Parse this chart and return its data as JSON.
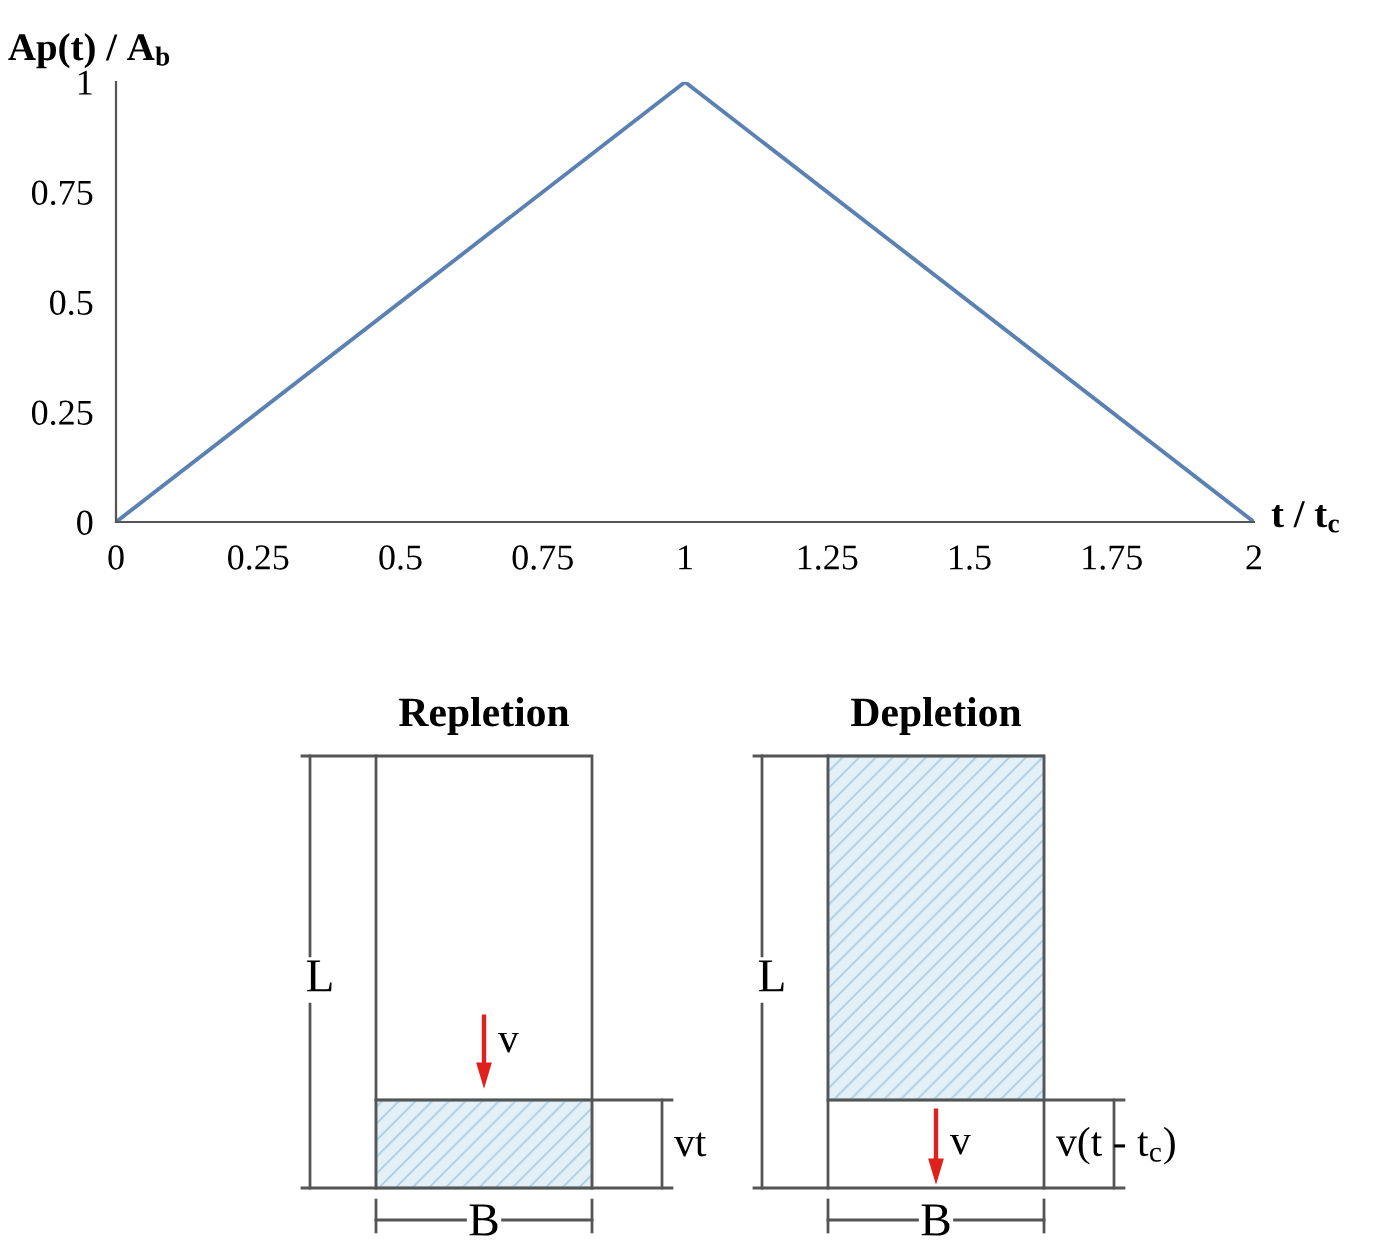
{
  "chart_data": {
    "type": "line",
    "ylabel": "Ap(t) / A$_{b}$",
    "xlabel": "t / t$_{c}$",
    "x": [
      0,
      1,
      2
    ],
    "series": [
      {
        "color": "#5b80b2",
        "values": [
          0,
          1,
          0
        ]
      }
    ],
    "xlim": [
      0,
      2
    ],
    "xticks": [
      0,
      0.25,
      0.5,
      0.75,
      1,
      1.25,
      1.5,
      1.75,
      2
    ],
    "ylim": [
      0,
      1
    ],
    "yticks": [
      0,
      0.25,
      0.5,
      0.75,
      1
    ],
    "marker": "none",
    "line_style": "solid",
    "annotations": [
      "Repletion",
      "Depletion",
      "L",
      "v",
      "vt",
      "B",
      "L",
      "v",
      "v(t - t$_{c}$)",
      "B"
    ]
  }
}
